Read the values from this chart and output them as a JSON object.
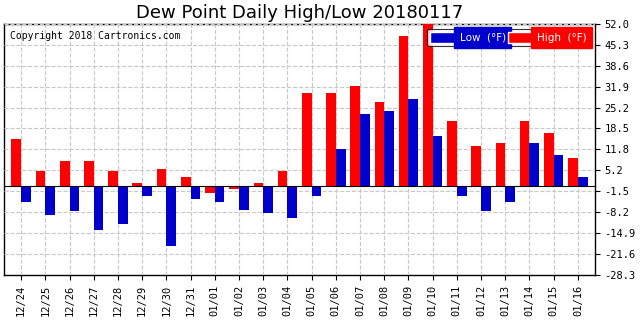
{
  "title": "Dew Point Daily High/Low 20180117",
  "copyright": "Copyright 2018 Cartronics.com",
  "legend_low_label": "Low  (°F)",
  "legend_high_label": "High  (°F)",
  "legend_low_color": "#0000cc",
  "legend_high_color": "#ff0000",
  "bar_color_high": "#ff0000",
  "bar_color_low": "#0000cc",
  "background_color": "#ffffff",
  "plot_bg_color": "#ffffff",
  "grid_color": "#c8c8c8",
  "categories": [
    "12/24",
    "12/25",
    "12/26",
    "12/27",
    "12/28",
    "12/29",
    "12/30",
    "12/31",
    "01/01",
    "01/02",
    "01/03",
    "01/04",
    "01/05",
    "01/06",
    "01/07",
    "01/08",
    "01/09",
    "01/10",
    "01/11",
    "01/12",
    "01/13",
    "01/14",
    "01/15",
    "01/16"
  ],
  "high_values": [
    15.0,
    5.0,
    8.0,
    8.0,
    5.0,
    1.0,
    5.5,
    3.0,
    -2.0,
    -1.0,
    1.0,
    5.0,
    30.0,
    30.0,
    32.0,
    27.0,
    48.0,
    53.0,
    21.0,
    13.0,
    14.0,
    21.0,
    17.0,
    9.0
  ],
  "low_values": [
    -5.0,
    -9.0,
    -8.0,
    -14.0,
    -12.0,
    -3.0,
    -19.0,
    -4.0,
    -5.0,
    -7.5,
    -8.5,
    -10.0,
    -3.0,
    12.0,
    23.0,
    24.0,
    28.0,
    16.0,
    -3.0,
    -8.0,
    -5.0,
    14.0,
    10.0,
    3.0
  ],
  "ylim": [
    -28.3,
    52.0
  ],
  "yticks": [
    52.0,
    45.3,
    38.6,
    31.9,
    25.2,
    18.5,
    11.8,
    5.2,
    -1.5,
    -8.2,
    -14.9,
    -21.6,
    -28.3
  ],
  "title_fontsize": 13,
  "tick_fontsize": 7.5,
  "copyright_fontsize": 7
}
